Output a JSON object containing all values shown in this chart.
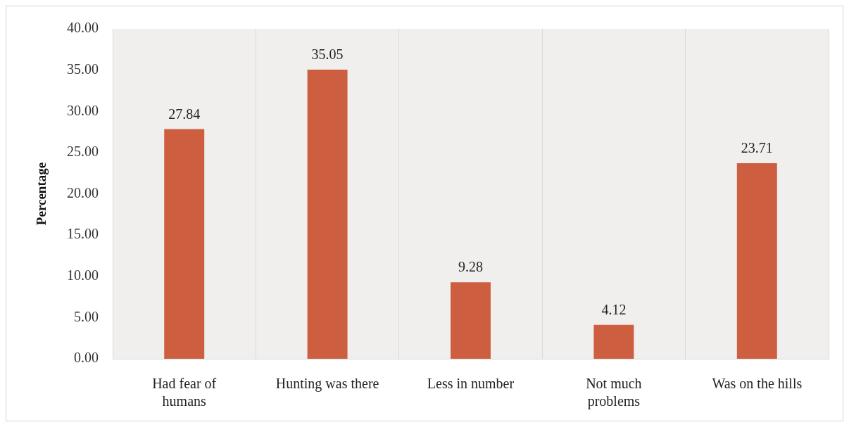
{
  "chart_data": {
    "type": "bar",
    "ylabel": "Percentage",
    "categories": [
      "Had fear of\nhumans",
      "Hunting was there",
      "Less in number",
      "Not much\nproblems",
      "Was on the hills"
    ],
    "values": [
      27.84,
      35.05,
      9.28,
      4.12,
      23.71
    ],
    "color": "#cd5f40",
    "ylim": [
      0,
      40
    ],
    "yticks": [
      {
        "value": 0,
        "label": "0.00"
      },
      {
        "value": 5,
        "label": "5.00"
      },
      {
        "value": 10,
        "label": "10.00"
      },
      {
        "value": 15,
        "label": "15.00"
      },
      {
        "value": 20,
        "label": "20.00"
      },
      {
        "value": 25,
        "label": "25.00"
      },
      {
        "value": 30,
        "label": "30.00"
      },
      {
        "value": 35,
        "label": "35.00"
      },
      {
        "value": 40,
        "label": "40.00"
      }
    ],
    "grid": "x",
    "data_labels": true
  }
}
